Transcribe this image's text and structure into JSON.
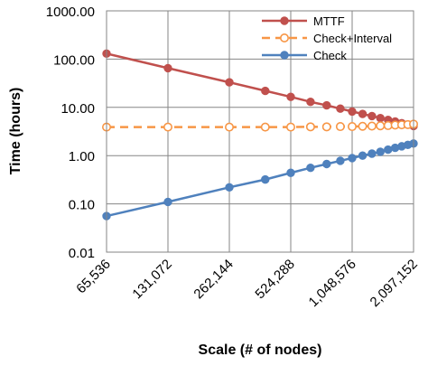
{
  "chart_data": {
    "type": "line",
    "title": "",
    "xlabel": "Scale (# of nodes)",
    "ylabel": "Time (hours)",
    "y_scale": "log",
    "ylim": [
      0.01,
      1000
    ],
    "y_ticks": [
      "0.01",
      "0.10",
      "1.00",
      "10.00",
      "100.00",
      "1000.00"
    ],
    "x_scale": "log2",
    "xlim": [
      65536,
      2097152
    ],
    "x_ticks": [
      65536,
      131072,
      262144,
      524288,
      1048576,
      2097152
    ],
    "x_tick_labels": [
      "65,536",
      "131,072",
      "262,144",
      "524,288",
      "1,048,576",
      "2,097,152"
    ],
    "grid": true,
    "legend_position": "top-right",
    "x": [
      65536,
      131072,
      262144,
      393216,
      524288,
      655360,
      786432,
      917504,
      1048576,
      1179648,
      1310720,
      1441792,
      1572864,
      1703936,
      1835008,
      1966080,
      2097152
    ],
    "series": [
      {
        "name": "MTTF",
        "color": "#c0504d",
        "line_style": "solid",
        "marker": "filled-circle",
        "values": [
          130,
          65,
          33,
          22,
          16.5,
          13,
          11,
          9.4,
          8.2,
          7.3,
          6.6,
          6.0,
          5.5,
          5.1,
          4.7,
          4.4,
          4.1
        ]
      },
      {
        "name": "Check+Interval",
        "color": "#f79646",
        "line_style": "dashed",
        "marker": "open-circle",
        "values": [
          3.9,
          3.9,
          3.9,
          3.9,
          3.9,
          3.95,
          3.95,
          4.0,
          4.0,
          4.05,
          4.1,
          4.15,
          4.2,
          4.3,
          4.35,
          4.4,
          4.5
        ]
      },
      {
        "name": "Check",
        "color": "#4f81bd",
        "line_style": "solid",
        "marker": "filled-circle",
        "values": [
          0.056,
          0.11,
          0.22,
          0.32,
          0.44,
          0.56,
          0.67,
          0.78,
          0.89,
          1.0,
          1.1,
          1.2,
          1.33,
          1.45,
          1.56,
          1.67,
          1.78
        ]
      }
    ]
  }
}
